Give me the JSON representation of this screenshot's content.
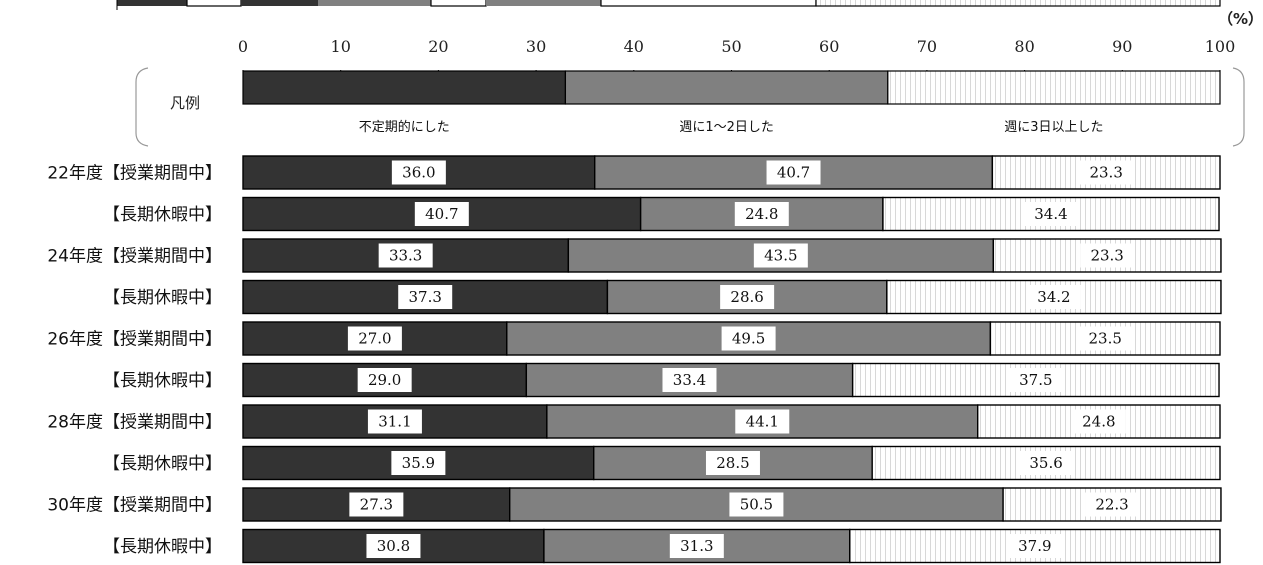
{
  "chart_data": {
    "type": "bar",
    "orientation": "horizontal",
    "stacked": true,
    "title": "",
    "xlabel": "",
    "ylabel": "",
    "unit_label": "（%）",
    "xlim": [
      0,
      100
    ],
    "x_ticks": [
      0,
      10,
      20,
      30,
      40,
      50,
      60,
      70,
      80,
      90,
      100
    ],
    "categories": [
      "22年度【授業期間中】",
      "【長期休暇中】",
      "24年度【授業期間中】",
      "【長期休暇中】",
      "26年度【授業期間中】",
      "【長期休暇中】",
      "28年度【授業期間中】",
      "【長期休暇中】",
      "30年度【授業期間中】",
      "【長期休暇中】"
    ],
    "series": [
      {
        "name": "不定期的にした",
        "color": "#333333",
        "values": [
          36.0,
          40.7,
          33.3,
          37.3,
          27.0,
          29.0,
          31.1,
          35.9,
          27.3,
          30.8
        ]
      },
      {
        "name": "週に1〜2日した",
        "color": "#808080",
        "values": [
          40.7,
          24.8,
          43.5,
          28.6,
          49.5,
          33.4,
          44.1,
          28.5,
          50.5,
          31.3
        ]
      },
      {
        "name": "週に3日以上した",
        "color": "#ffffff",
        "pattern": "vertical-hatch",
        "values": [
          23.3,
          34.4,
          23.3,
          34.2,
          23.5,
          37.5,
          24.8,
          35.6,
          22.3,
          37.9
        ]
      }
    ],
    "legend": {
      "title": "凡例",
      "position": "top",
      "example_values": [
        33,
        33,
        34
      ]
    },
    "data_labels": true,
    "grid": false
  }
}
